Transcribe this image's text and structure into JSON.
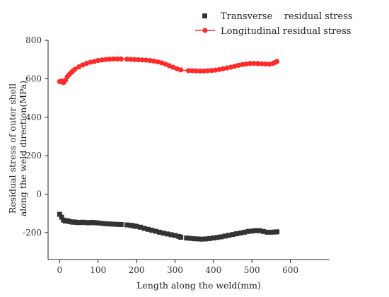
{
  "chart_data": {
    "type": "scatter",
    "title": "",
    "xlabel": "Length along the weld(mm)",
    "ylabel_lines": [
      "Residual stress of outer shell",
      "along the weld direction(MPa)"
    ],
    "xlim": [
      -30,
      700
    ],
    "ylim": [
      -340,
      800
    ],
    "xticks": [
      0,
      100,
      200,
      300,
      400,
      500,
      600
    ],
    "yticks": [
      -200,
      0,
      200,
      400,
      600,
      800
    ],
    "grid": false,
    "legend_position": "top-right",
    "series": [
      {
        "name": "Transverse    residual stress",
        "color": "#333333",
        "marker": "square",
        "x": [
          0,
          5,
          10,
          15,
          20,
          25,
          30,
          35,
          40,
          45,
          50,
          55,
          60,
          65,
          70,
          75,
          80,
          85,
          90,
          95,
          100,
          110,
          120,
          130,
          140,
          150,
          160,
          175,
          185,
          190,
          195,
          200,
          210,
          220,
          230,
          240,
          250,
          260,
          270,
          280,
          290,
          300,
          310,
          315,
          330,
          340,
          350,
          360,
          370,
          380,
          390,
          400,
          410,
          420,
          430,
          440,
          450,
          460,
          470,
          480,
          490,
          500,
          510,
          520,
          530,
          540,
          550,
          560,
          565
        ],
        "y": [
          -105,
          -120,
          -135,
          -140,
          -138,
          -142,
          -144,
          -146,
          -145,
          -147,
          -148,
          -147,
          -146,
          -147,
          -148,
          -149,
          -148,
          -147,
          -148,
          -149,
          -150,
          -152,
          -154,
          -155,
          -156,
          -157,
          -158,
          -160,
          -162,
          -164,
          -166,
          -168,
          -172,
          -178,
          -183,
          -188,
          -193,
          -198,
          -203,
          -207,
          -211,
          -215,
          -220,
          -224,
          -228,
          -230,
          -232,
          -233,
          -234,
          -233,
          -231,
          -228,
          -225,
          -222,
          -218,
          -214,
          -210,
          -206,
          -202,
          -198,
          -194,
          -192,
          -190,
          -190,
          -194,
          -198,
          -198,
          -197,
          -196
        ]
      },
      {
        "name": "Longitudinal residual stress",
        "color": "#ff2a2a",
        "marker": "circle",
        "x": [
          0,
          5,
          10,
          15,
          20,
          25,
          30,
          35,
          40,
          50,
          60,
          70,
          80,
          90,
          100,
          110,
          120,
          130,
          140,
          150,
          160,
          175,
          185,
          195,
          205,
          215,
          225,
          235,
          245,
          255,
          265,
          275,
          285,
          295,
          305,
          315,
          335,
          345,
          355,
          365,
          375,
          385,
          395,
          405,
          415,
          425,
          435,
          445,
          455,
          465,
          475,
          485,
          495,
          505,
          515,
          525,
          535,
          545,
          555,
          560,
          565
        ],
        "y": [
          585,
          588,
          580,
          592,
          610,
          622,
          632,
          642,
          650,
          662,
          672,
          680,
          686,
          690,
          695,
          698,
          700,
          702,
          703,
          703,
          703,
          702,
          701,
          700,
          699,
          698,
          697,
          695,
          692,
          688,
          683,
          676,
          668,
          660,
          652,
          646,
          642,
          642,
          641,
          640,
          640,
          642,
          643,
          645,
          648,
          652,
          656,
          660,
          665,
          670,
          674,
          677,
          679,
          680,
          679,
          678,
          677,
          676,
          680,
          685,
          690
        ]
      }
    ]
  }
}
